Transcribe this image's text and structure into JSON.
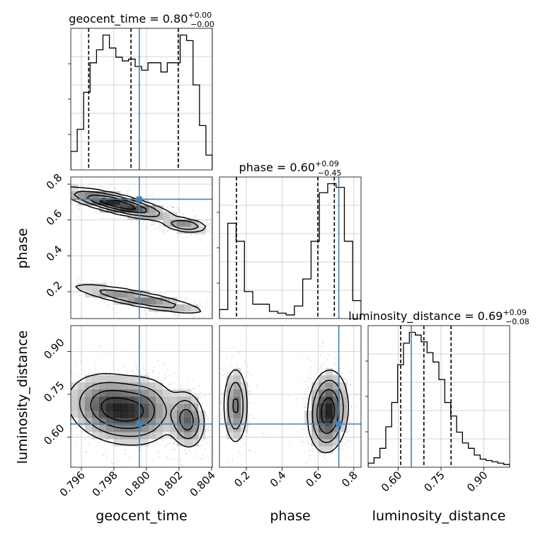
{
  "chart_data": {
    "type": "corner",
    "colors": {
      "truth": "#4682b4",
      "hist": "#000000",
      "grid": "#c8c8c8",
      "scatter": "#9a9a9a"
    },
    "parameters": [
      "geocent_time",
      "phase",
      "luminosity_distance"
    ],
    "truths": {
      "geocent_time": 0.79956,
      "phase": 0.716,
      "luminosity_distance": 0.646
    },
    "titles": [
      {
        "param": "geocent_time",
        "label": "geocent_time = 0.80",
        "plus": "+0.00",
        "minus": "−0.00"
      },
      {
        "param": "phase",
        "label": "phase = 0.60",
        "plus": "+0.09",
        "minus": "−0.45"
      },
      {
        "param": "luminosity_distance",
        "label": "luminosity_distance = 0.69",
        "plus": "+0.09",
        "minus": "−0.08"
      }
    ],
    "axis_labels": {
      "x": [
        "geocent_time",
        "phase",
        "luminosity_distance"
      ],
      "y": [
        "phase",
        "luminosity_distance"
      ]
    },
    "ranges": {
      "geocent_time": [
        0.79535,
        0.80405
      ],
      "phase": [
        0.05,
        0.84
      ],
      "luminosity_distance": [
        0.495,
        0.99
      ]
    },
    "ticks": {
      "geocent_time": [
        0.796,
        0.798,
        0.8,
        0.802,
        0.804
      ],
      "phase": [
        0.2,
        0.4,
        0.6,
        0.8
      ],
      "luminosity_distance": [
        0.6,
        0.75,
        0.9
      ]
    },
    "tick_labels": {
      "geocent_time": [
        "0.796",
        "0.798",
        "0.800",
        "0.802",
        "0.804"
      ],
      "phase": [
        "0.2",
        "0.4",
        "0.6",
        "0.8"
      ],
      "luminosity_distance": [
        "0.60",
        "0.75",
        "0.90"
      ]
    },
    "quantiles": {
      "geocent_time": [
        0.79645,
        0.79905,
        0.80195
      ],
      "phase": [
        0.145,
        0.599,
        0.691
      ],
      "luminosity_distance": [
        0.609,
        0.69,
        0.785
      ]
    },
    "histograms": {
      "geocent_time": [
        10,
        22,
        42,
        58,
        65,
        73,
        66,
        61,
        59,
        60,
        56,
        54,
        58,
        58,
        53,
        58,
        58,
        73,
        70,
        46,
        24,
        8
      ],
      "phase": [
        5,
        53,
        43,
        15,
        8,
        8,
        4,
        3,
        2,
        7,
        22,
        43,
        70,
        75,
        73,
        43,
        10
      ],
      "luminosity_distance": [
        3,
        7,
        14,
        30,
        48,
        76,
        92,
        100,
        98,
        93,
        85,
        78,
        65,
        48,
        38,
        26,
        18,
        14,
        9,
        6,
        5,
        4,
        3,
        2
      ]
    },
    "hist_grid": [
      0.2,
      0.4,
      0.6,
      0.8
    ],
    "density_clusters": {
      "geocent_time-phase": [
        {
          "mx": 0.7982,
          "my": 0.69,
          "sx": 0.0017,
          "sy": 0.045,
          "rho": -0.8,
          "w": 1.0
        },
        {
          "mx": 0.8024,
          "my": 0.57,
          "sx": 0.0007,
          "sy": 0.02,
          "rho": -0.3,
          "w": 0.55
        },
        {
          "mx": 0.7995,
          "my": 0.16,
          "sx": 0.0022,
          "sy": 0.045,
          "rho": -0.85,
          "w": 0.55
        }
      ],
      "geocent_time-luminosity_distance": [
        {
          "mx": 0.798,
          "my": 0.7,
          "sx": 0.0014,
          "sy": 0.06,
          "rho": -0.2,
          "w": 1.0
        },
        {
          "mx": 0.8025,
          "my": 0.66,
          "sx": 0.00055,
          "sy": 0.05,
          "rho": -0.1,
          "w": 0.75
        },
        {
          "mx": 0.8,
          "my": 0.7,
          "sx": 0.001,
          "sy": 0.06,
          "rho": 0.0,
          "w": 0.45
        }
      ],
      "phase-luminosity_distance": [
        {
          "mx": 0.14,
          "my": 0.71,
          "sx": 0.035,
          "sy": 0.07,
          "rho": 0.0,
          "w": 0.6
        },
        {
          "mx": 0.655,
          "my": 0.69,
          "sx": 0.055,
          "sy": 0.07,
          "rho": 0.1,
          "w": 1.0
        }
      ]
    }
  }
}
